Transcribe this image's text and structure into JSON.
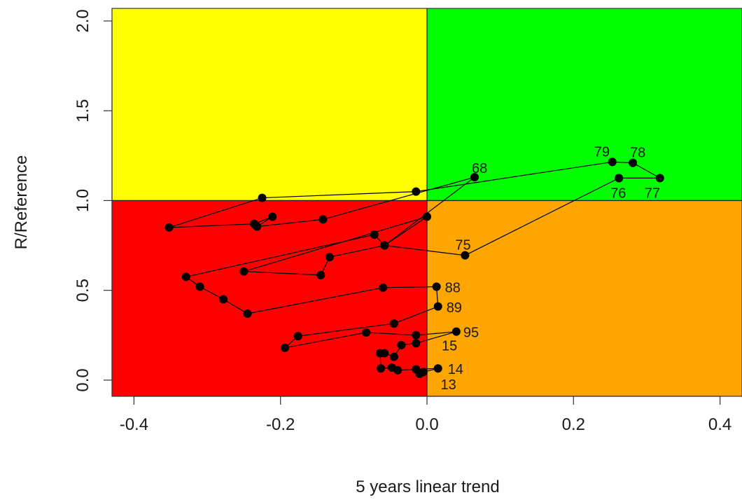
{
  "chart_data": {
    "type": "scatter",
    "title": "",
    "xlabel": "5 years linear trend",
    "ylabel": "R/Reference",
    "xlim": [
      -0.43,
      0.43
    ],
    "ylim": [
      -0.09,
      2.07
    ],
    "x_ticks": [
      -0.4,
      -0.2,
      0.0,
      0.2,
      0.4
    ],
    "y_ticks": [
      0.0,
      0.5,
      1.0,
      1.5,
      2.0
    ],
    "x_tick_labels": [
      "-0.4",
      "-0.2",
      "0.0",
      "0.2",
      "0.4"
    ],
    "y_tick_labels": [
      "0.0",
      "0.5",
      "1.0",
      "1.5",
      "2.0"
    ],
    "reference_lines": {
      "x": 0.0,
      "y": 1.0
    },
    "quadrants": [
      {
        "position": "top-left",
        "color": "#ffff00"
      },
      {
        "position": "top-right",
        "color": "#00ff00"
      },
      {
        "position": "bottom-left",
        "color": "#ff0000"
      },
      {
        "position": "bottom-right",
        "color": "#ffa500"
      }
    ],
    "grid": false,
    "legend": "none",
    "series": [
      {
        "points": [
          {
            "x": 0.262,
            "y": 1.125,
            "label": "76"
          },
          {
            "x": 0.318,
            "y": 1.125,
            "label": "77"
          },
          {
            "x": 0.281,
            "y": 1.21,
            "label": "78"
          },
          {
            "x": 0.253,
            "y": 1.215,
            "label": "79"
          },
          {
            "x": -0.015,
            "y": 1.05
          },
          {
            "x": -0.225,
            "y": 1.015
          },
          {
            "x": -0.352,
            "y": 0.85
          },
          {
            "x": -0.236,
            "y": 0.87
          },
          {
            "x": -0.211,
            "y": 0.91
          },
          {
            "x": -0.232,
            "y": 0.855
          },
          {
            "x": -0.142,
            "y": 0.895
          },
          {
            "x": 0.065,
            "y": 1.13,
            "label": "68"
          },
          {
            "x": -0.058,
            "y": 0.75
          },
          {
            "x": -0.072,
            "y": 0.81
          },
          {
            "x": -0.329,
            "y": 0.575
          },
          {
            "x": -0.31,
            "y": 0.52
          },
          {
            "x": -0.278,
            "y": 0.45
          },
          {
            "x": -0.245,
            "y": 0.37
          },
          {
            "x": -0.06,
            "y": 0.515
          },
          {
            "x": 0.013,
            "y": 0.52,
            "label": "88"
          },
          {
            "x": 0.015,
            "y": 0.41,
            "label": "89"
          },
          {
            "x": -0.045,
            "y": 0.315
          },
          {
            "x": -0.176,
            "y": 0.245
          },
          {
            "x": -0.194,
            "y": 0.18
          },
          {
            "x": -0.083,
            "y": 0.265
          },
          {
            "x": -0.015,
            "y": 0.25
          },
          {
            "x": 0.04,
            "y": 0.27,
            "label": "95"
          },
          {
            "x": -0.015,
            "y": 0.205
          },
          {
            "x": -0.035,
            "y": 0.195
          },
          {
            "x": -0.045,
            "y": 0.13
          },
          {
            "x": -0.058,
            "y": 0.15
          },
          {
            "x": -0.064,
            "y": 0.15,
            "label": "15"
          },
          {
            "x": -0.063,
            "y": 0.065
          },
          {
            "x": -0.048,
            "y": 0.07
          },
          {
            "x": -0.04,
            "y": 0.055
          },
          {
            "x": -0.015,
            "y": 0.06
          },
          {
            "x": 0.015,
            "y": 0.065,
            "label": "14"
          },
          {
            "x": -0.005,
            "y": 0.045
          },
          {
            "x": -0.01,
            "y": 0.035,
            "label": "13"
          }
        ]
      },
      {
        "points": [
          {
            "x": -0.145,
            "y": 0.585
          },
          {
            "x": -0.133,
            "y": 0.685
          },
          {
            "x": -0.058,
            "y": 0.75
          },
          {
            "x": 0.0,
            "y": 0.91
          },
          {
            "x": -0.25,
            "y": 0.605
          },
          {
            "x": -0.145,
            "y": 0.585
          }
        ]
      },
      {
        "points": [
          {
            "x": -0.058,
            "y": 0.75
          },
          {
            "x": 0.052,
            "y": 0.695,
            "label": "75"
          },
          {
            "x": 0.262,
            "y": 1.125,
            "label": "76"
          }
        ]
      }
    ]
  }
}
